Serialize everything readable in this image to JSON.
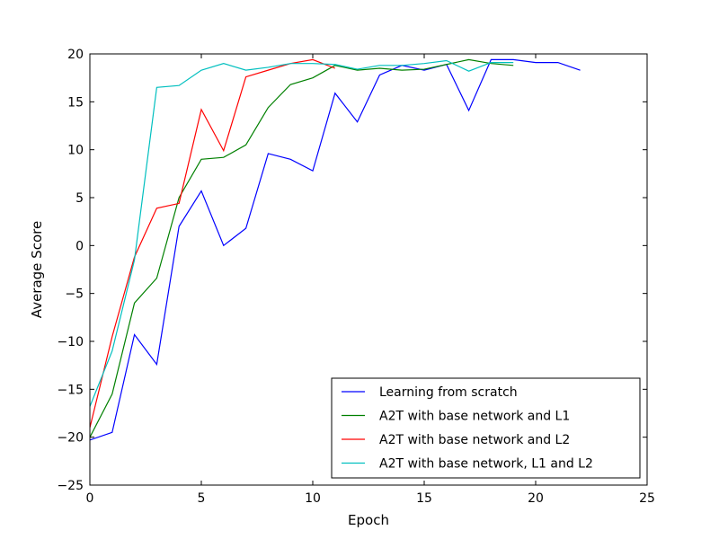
{
  "chart_data": {
    "type": "line",
    "title": "",
    "xlabel": "Epoch",
    "ylabel": "Average Score",
    "xlim": [
      0,
      25
    ],
    "ylim": [
      -25,
      20
    ],
    "xticks": [
      0,
      5,
      10,
      15,
      20,
      25
    ],
    "yticks": [
      -25,
      -20,
      -15,
      -10,
      -5,
      0,
      5,
      10,
      15,
      20
    ],
    "grid": false,
    "legend_position": "bottom-right",
    "series": [
      {
        "name": "Learning from scratch",
        "color": "#0000ff",
        "x": [
          0,
          1,
          2,
          3,
          4,
          5,
          6,
          7,
          8,
          9,
          10,
          11,
          12,
          13,
          14,
          15,
          16,
          17,
          18,
          19,
          20,
          21,
          22
        ],
        "y": [
          -20.3,
          -19.5,
          -9.3,
          -12.4,
          2.0,
          5.7,
          0.0,
          1.8,
          9.6,
          9.0,
          7.8,
          15.9,
          12.9,
          17.8,
          18.8,
          18.3,
          18.9,
          14.1,
          19.4,
          19.4,
          19.1,
          19.1,
          18.3
        ]
      },
      {
        "name": "A2T with base network and L1",
        "color": "#008000",
        "x": [
          0,
          1,
          2,
          3,
          4,
          5,
          6,
          7,
          8,
          9,
          10,
          11,
          12,
          13,
          14,
          15,
          16,
          17,
          18,
          19
        ],
        "y": [
          -20.0,
          -15.5,
          -6.0,
          -3.4,
          5.0,
          9.0,
          9.2,
          10.5,
          14.4,
          16.8,
          17.5,
          18.8,
          18.3,
          18.5,
          18.3,
          18.4,
          18.9,
          19.4,
          19.0,
          18.8
        ]
      },
      {
        "name": "A2T with base network and L2",
        "color": "#ff0000",
        "x": [
          0,
          1,
          2,
          3,
          4,
          5,
          6,
          7,
          8,
          9,
          10,
          11
        ],
        "y": [
          -19.0,
          -9.5,
          -1.2,
          3.9,
          4.4,
          14.2,
          9.9,
          17.6,
          18.3,
          19.0,
          19.4,
          18.5
        ]
      },
      {
        "name": "A2T with base network, L1 and L2",
        "color": "#00bfbf",
        "x": [
          0,
          1,
          2,
          3,
          4,
          5,
          6,
          7,
          8,
          9,
          10,
          11,
          12,
          13,
          14,
          15,
          16,
          17,
          18,
          19
        ],
        "y": [
          -16.8,
          -11.0,
          -1.5,
          16.5,
          16.7,
          18.3,
          19.0,
          18.3,
          18.6,
          19.0,
          19.0,
          18.9,
          18.4,
          18.8,
          18.8,
          19.0,
          19.3,
          18.2,
          19.1,
          19.1
        ]
      }
    ]
  }
}
